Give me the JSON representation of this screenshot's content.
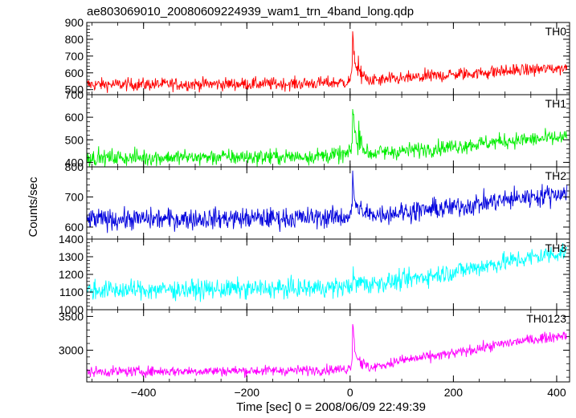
{
  "title": "ae803069010_20080609224939_wam1_trn_4band_long.qdp",
  "xlabel": "Time [sec] 0 = 2008/06/09 22:49:39",
  "ylabel": "Counts/sec",
  "chart_data": {
    "type": "line",
    "x_range": [
      -510,
      425
    ],
    "x_ticks": [
      -400,
      -200,
      0,
      200,
      400
    ],
    "flare_time": 5,
    "series": [
      {
        "name": "TH0",
        "color": "#ff0000",
        "ylim": [
          470,
          900
        ],
        "y_ticks": [
          500,
          600,
          700,
          800,
          900
        ],
        "baseline": [
          [
            -510,
            530
          ],
          [
            -100,
            535
          ],
          [
            0,
            545
          ],
          [
            100,
            565
          ],
          [
            200,
            590
          ],
          [
            300,
            610
          ],
          [
            420,
            630
          ]
        ],
        "noise": 35,
        "peak": 900,
        "peak_second": 790
      },
      {
        "name": "TH1",
        "color": "#00ee00",
        "ylim": [
          380,
          700
        ],
        "y_ticks": [
          400,
          500,
          600,
          700
        ],
        "baseline": [
          [
            -510,
            420
          ],
          [
            -100,
            425
          ],
          [
            0,
            435
          ],
          [
            100,
            450
          ],
          [
            200,
            470
          ],
          [
            300,
            495
          ],
          [
            420,
            510
          ]
        ],
        "noise": 32,
        "peak": 700,
        "peak_second": 640
      },
      {
        "name": "TH2",
        "color": "#0000dd",
        "ylim": [
          560,
          800
        ],
        "y_ticks": [
          600,
          700,
          800
        ],
        "baseline": [
          [
            -510,
            625
          ],
          [
            -100,
            630
          ],
          [
            0,
            635
          ],
          [
            100,
            650
          ],
          [
            200,
            665
          ],
          [
            300,
            690
          ],
          [
            420,
            715
          ]
        ],
        "noise": 32,
        "peak": 785,
        "peak_second": 700
      },
      {
        "name": "TH3",
        "color": "#00ffff",
        "ylim": [
          1000,
          1400
        ],
        "y_ticks": [
          1000,
          1100,
          1200,
          1300,
          1400
        ],
        "baseline": [
          [
            -510,
            1110
          ],
          [
            -100,
            1120
          ],
          [
            0,
            1130
          ],
          [
            100,
            1165
          ],
          [
            200,
            1215
          ],
          [
            300,
            1270
          ],
          [
            420,
            1330
          ]
        ],
        "noise": 50,
        "peak": 1200,
        "peak_second": 1170
      },
      {
        "name": "TH0123",
        "color": "#ff00ff",
        "ylim": [
          2530,
          3600
        ],
        "y_ticks": [
          3000,
          3500
        ],
        "baseline": [
          [
            -510,
            2680
          ],
          [
            -100,
            2700
          ],
          [
            0,
            2720
          ],
          [
            40,
            2740
          ],
          [
            100,
            2850
          ],
          [
            200,
            2950
          ],
          [
            300,
            3100
          ],
          [
            420,
            3230
          ]
        ],
        "noise": 70,
        "peak": 3580,
        "peak_second": 3200
      }
    ]
  }
}
